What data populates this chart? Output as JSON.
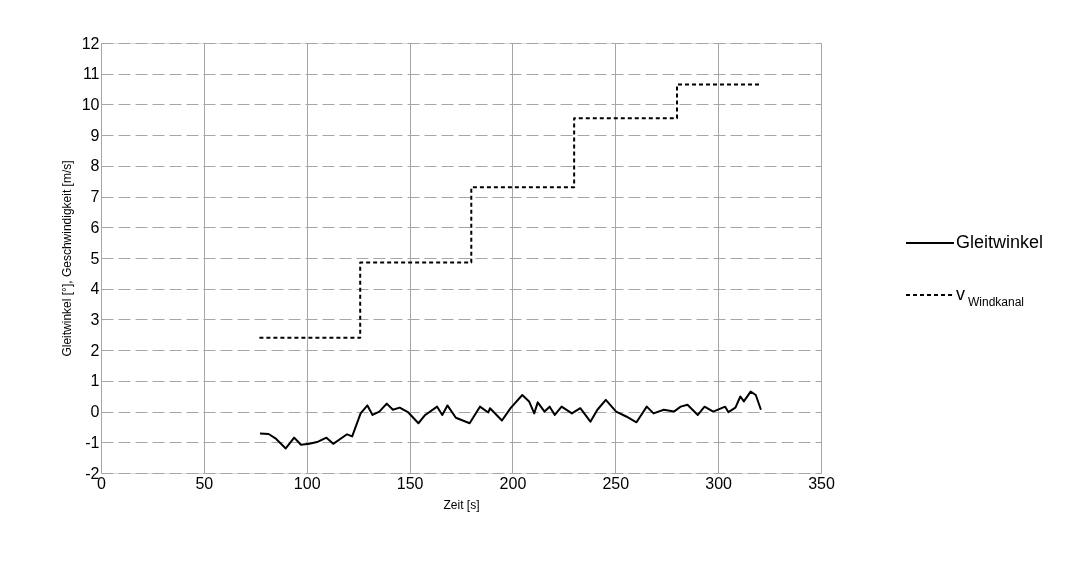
{
  "chart_data": {
    "type": "line",
    "xlabel": "Zeit [s]",
    "ylabel": "Gleitwinkel [°], Geschwindigkeit [m/s]",
    "xlim": [
      0,
      350
    ],
    "xticks": [
      0,
      50,
      100,
      150,
      200,
      250,
      300,
      350
    ],
    "ylim": [
      -2,
      12
    ],
    "yticks": [
      -2,
      -1,
      0,
      1,
      2,
      3,
      4,
      5,
      6,
      7,
      8,
      9,
      10,
      11,
      12
    ],
    "grid": true,
    "legend": "right",
    "marker": "none",
    "series": [
      {
        "name": "Gleitwinkel",
        "color": "#000000",
        "line_style": "solid",
        "x": [
          77.3,
          81.5,
          84.8,
          89.8,
          93.9,
          97.2,
          101.3,
          105.5,
          109.6,
          112.9,
          119.6,
          122.1,
          126.2,
          129.5,
          132.0,
          135.3,
          138.9,
          141.9,
          145.2,
          149.4,
          154.3,
          157.6,
          163.4,
          165.9,
          168.4,
          172.5,
          179.2,
          184.2,
          188.3,
          189.1,
          194.9,
          199.1,
          204.8,
          208.1,
          210.6,
          212.3,
          215.6,
          218.1,
          220.6,
          223.9,
          228.9,
          233.0,
          237.9,
          241.3,
          245.4,
          250.4,
          255.3,
          260.3,
          265.3,
          268.6,
          273.6,
          278.5,
          281.8,
          285.1,
          290.1,
          293.4,
          297.6,
          303.4,
          305.0,
          308.4,
          310.8,
          312.5,
          315.8,
          318.3,
          320.8
        ],
        "values": [
          -0.71,
          -0.73,
          -0.87,
          -1.2,
          -0.85,
          -1.08,
          -1.05,
          -0.98,
          -0.85,
          -1.05,
          -0.74,
          -0.81,
          -0.06,
          0.2,
          -0.11,
          0.0,
          0.26,
          0.06,
          0.13,
          -0.03,
          -0.38,
          -0.11,
          0.16,
          -0.11,
          0.2,
          -0.2,
          -0.38,
          0.16,
          -0.03,
          0.11,
          -0.29,
          0.11,
          0.54,
          0.33,
          -0.06,
          0.3,
          0.0,
          0.16,
          -0.11,
          0.16,
          -0.06,
          0.11,
          -0.33,
          0.06,
          0.38,
          0.0,
          -0.16,
          -0.35,
          0.16,
          -0.06,
          0.06,
          0.0,
          0.16,
          0.22,
          -0.11,
          0.16,
          0.0,
          0.16,
          -0.02,
          0.13,
          0.49,
          0.33,
          0.65,
          0.54,
          0.06
        ]
      },
      {
        "name": "v$_{Windkanal}$",
        "type": "step",
        "color": "#000000",
        "line_style": "dashed",
        "x": [
          77,
          126,
          180,
          230,
          280,
          321
        ],
        "values": [
          2.4,
          4.85,
          7.3,
          9.55,
          10.65,
          10.65
        ]
      }
    ]
  }
}
